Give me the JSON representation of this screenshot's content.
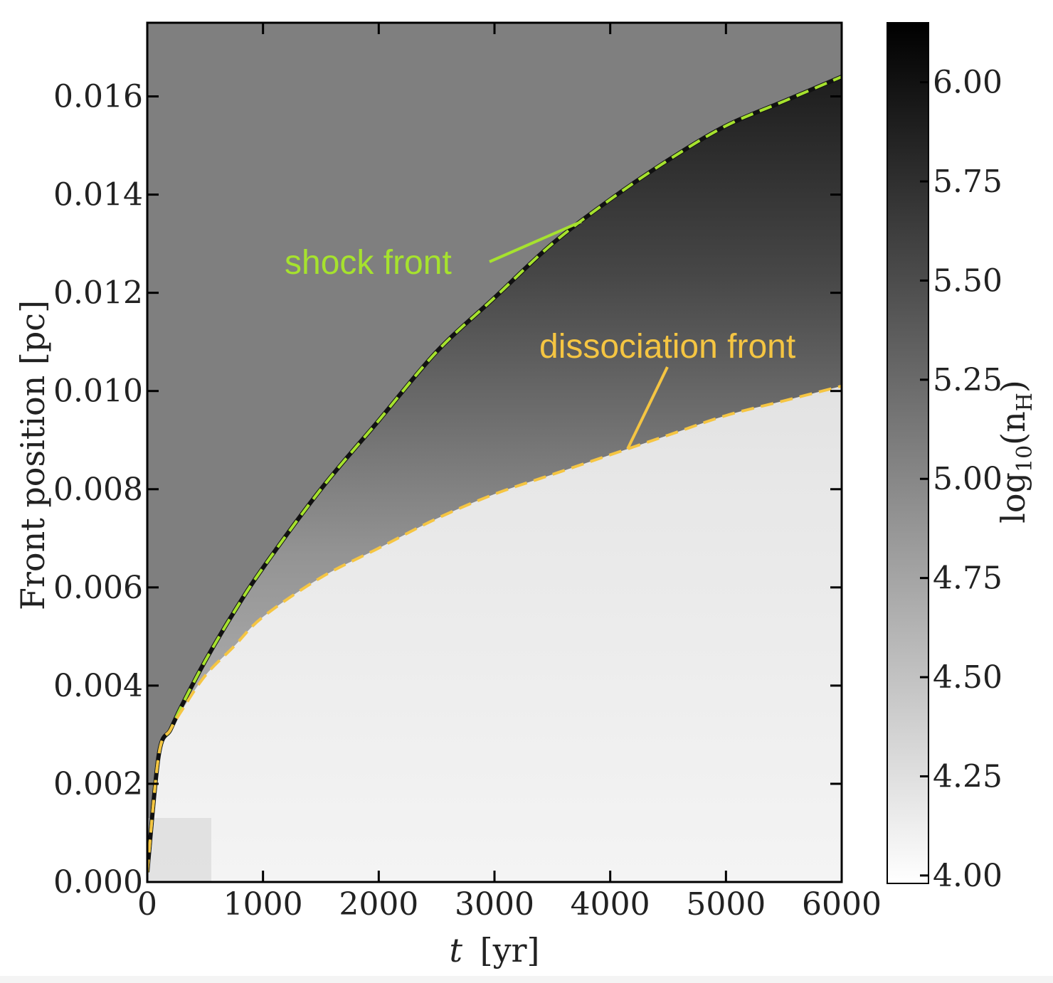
{
  "chart_data": {
    "type": "heatmap",
    "xlabel_italic": "t",
    "xlabel_unit": "[yr]",
    "ylabel": "Front position [pc]",
    "xlim": [
      0,
      6000
    ],
    "ylim": [
      0,
      0.0175
    ],
    "x_ticks": [
      "0",
      "1000",
      "2000",
      "3000",
      "4000",
      "5000",
      "6000"
    ],
    "y_ticks": [
      "0.000",
      "0.002",
      "0.004",
      "0.006",
      "0.008",
      "0.010",
      "0.012",
      "0.014",
      "0.016"
    ],
    "colorbar": {
      "label": "log10(nH)",
      "label_main": "log",
      "label_sub": "10",
      "label_arg": "(n",
      "label_arg_sub": "H",
      "label_close": ")",
      "range": [
        3.98,
        6.15
      ],
      "ticks": [
        "4.00",
        "4.25",
        "4.50",
        "4.75",
        "5.00",
        "5.25",
        "5.50",
        "5.75",
        "6.00"
      ],
      "colormap": "gray_r"
    },
    "series": [
      {
        "name": "shock front",
        "color": "#a6e22e",
        "style": "dashed",
        "x": [
          0,
          100,
          200,
          300,
          500,
          750,
          1000,
          1500,
          2000,
          2500,
          3000,
          3500,
          4000,
          4500,
          5000,
          5500,
          6000
        ],
        "y": [
          0.0002,
          0.0026,
          0.0031,
          0.0036,
          0.0045,
          0.0055,
          0.0064,
          0.008,
          0.0094,
          0.0108,
          0.0119,
          0.013,
          0.0139,
          0.0147,
          0.0154,
          0.0159,
          0.0164
        ]
      },
      {
        "name": "dissociation front",
        "color": "#f5c542",
        "style": "dashed",
        "x": [
          0,
          100,
          200,
          300,
          500,
          750,
          1000,
          1500,
          2000,
          2500,
          3000,
          3500,
          4000,
          4500,
          5000,
          5500,
          6000
        ],
        "y": [
          0.0002,
          0.0026,
          0.0031,
          0.0035,
          0.0042,
          0.0048,
          0.0054,
          0.0062,
          0.0068,
          0.0074,
          0.0079,
          0.0083,
          0.0087,
          0.0091,
          0.0095,
          0.0098,
          0.0101
        ]
      }
    ],
    "annotations": [
      {
        "text": "shock front",
        "color": "#a6e22e",
        "x_at": 3750,
        "series": 0
      },
      {
        "text": "dissociation front",
        "color": "#f5c542",
        "x_at": 4150,
        "series": 1
      }
    ]
  }
}
